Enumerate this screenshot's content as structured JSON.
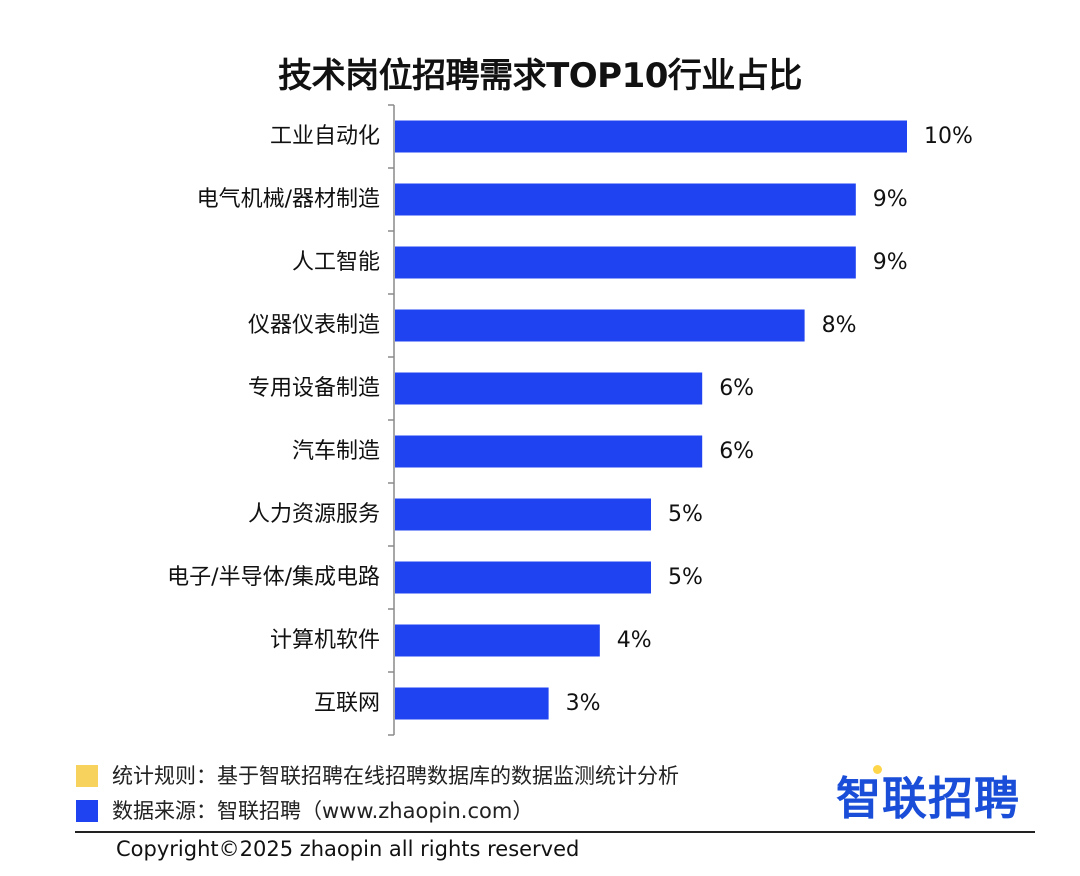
{
  "chart_data": {
    "type": "bar",
    "orientation": "horizontal",
    "title": "技术岗位招聘需求TOP10行业占比",
    "categories": [
      "工业自动化",
      "电气机械/器材制造",
      "人工智能",
      "仪器仪表制造",
      "专用设备制造",
      "汽车制造",
      "人力资源服务",
      "电子/半导体/集成电路",
      "计算机软件",
      "互联网"
    ],
    "values": [
      10,
      9,
      9,
      8,
      6,
      6,
      5,
      5,
      4,
      3
    ],
    "value_labels": [
      "10%",
      "9%",
      "9%",
      "8%",
      "6%",
      "6%",
      "5%",
      "5%",
      "4%",
      "3%"
    ],
    "xlim": [
      0,
      10
    ],
    "grid": false,
    "bar_color": "#1f43f0"
  },
  "footer": {
    "rule_text": "统计规则：基于智联招聘在线招聘数据库的数据监测统计分析",
    "source_text": "数据来源：智联招聘（www.zhaopin.com）",
    "rule_color": "#f7d25c",
    "source_color": "#1f43f0",
    "brand": "智联招聘",
    "copyright": "Copyright©2025 zhaopin all rights reserved"
  }
}
